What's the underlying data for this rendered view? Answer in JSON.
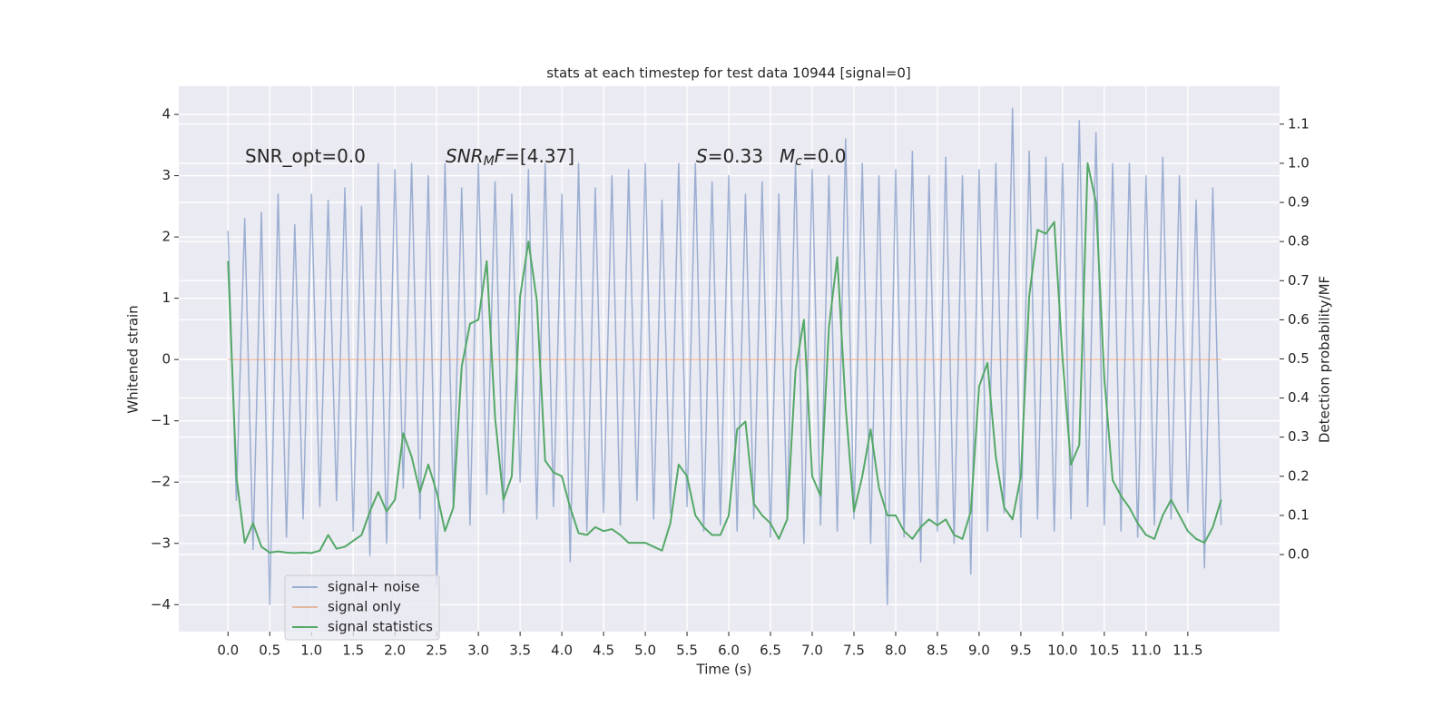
{
  "chart_data": {
    "type": "line",
    "title": "stats at each timestep for test data 10944 [signal=0]",
    "x_label": "Time (s)",
    "y_label": "Whitened strain",
    "y2_label": "Detection probability/MF",
    "xlim": [
      -0.59,
      12.6
    ],
    "ylim": [
      -4.44,
      4.46
    ],
    "y2lim": [
      -0.197,
      1.197
    ],
    "xticks": [
      {
        "value": 0,
        "label": "0.0"
      },
      0.5,
      {
        "value": 1,
        "label": "1.0"
      },
      1.5,
      {
        "value": 2,
        "label": "2.0"
      },
      2.5,
      {
        "value": 3,
        "label": "3.0"
      },
      3.5,
      {
        "value": 4,
        "label": "4.0"
      },
      4.5,
      {
        "value": 5,
        "label": "5.0"
      },
      5.5,
      {
        "value": 6,
        "label": "6.0"
      },
      6.5,
      {
        "value": 7,
        "label": "7.0"
      },
      7.5,
      {
        "value": 8,
        "label": "8.0"
      },
      8.5,
      {
        "value": 9,
        "label": "9.0"
      },
      9.5,
      {
        "value": 10,
        "label": "10.0"
      },
      10.5,
      {
        "value": 11,
        "label": "11.0"
      },
      11.5
    ],
    "yticks": [
      {
        "value": -4,
        "label": "−4"
      },
      {
        "value": -3,
        "label": "−3"
      },
      {
        "value": -2,
        "label": "−2"
      },
      {
        "value": -1,
        "label": "−1"
      },
      0,
      1,
      2,
      3,
      4
    ],
    "y2ticks": [
      {
        "value": 0,
        "label": "0.0"
      },
      0.1,
      0.2,
      0.3,
      0.4,
      0.5,
      0.6,
      0.7,
      0.8,
      0.9,
      {
        "value": 1,
        "label": "1.0"
      },
      1.1
    ],
    "grid": true,
    "legend": "lower left",
    "annotations": [
      {
        "parts": [
          {
            "text": "SNR_opt=0.0"
          }
        ]
      },
      {
        "parts": [
          {
            "text": "SNR",
            "italic": true
          },
          {
            "text": "M",
            "italic": true,
            "sub": true
          },
          {
            "text": "F",
            "italic": true
          },
          {
            "text": "=[4.37]"
          }
        ]
      },
      {
        "parts": [
          {
            "text": "S",
            "italic": true
          },
          {
            "text": "=0.33"
          }
        ]
      },
      {
        "parts": [
          {
            "text": "M",
            "italic": true
          },
          {
            "text": "c",
            "italic": true,
            "sub": true
          },
          {
            "text": "=0.0"
          }
        ]
      }
    ],
    "series": [
      {
        "name": "signal+ noise",
        "color": "#4c72b0",
        "opacity": 0.5,
        "x": [
          0.0,
          0.1,
          0.2,
          0.3,
          0.4,
          0.5,
          0.6,
          0.7,
          0.8,
          0.9,
          1.0,
          1.1,
          1.2,
          1.3,
          1.4,
          1.5,
          1.6,
          1.7,
          1.8,
          1.9,
          2.0,
          2.1,
          2.2,
          2.3,
          2.4,
          2.5,
          2.6,
          2.7,
          2.8,
          2.9,
          3.0,
          3.1,
          3.2,
          3.3,
          3.4,
          3.5,
          3.6,
          3.7,
          3.8,
          3.9,
          4.0,
          4.1,
          4.2,
          4.3,
          4.4,
          4.5,
          4.6,
          4.7,
          4.8,
          4.9,
          5.0,
          5.1,
          5.2,
          5.3,
          5.4,
          5.5,
          5.6,
          5.7,
          5.8,
          5.9,
          6.0,
          6.1,
          6.2,
          6.3,
          6.4,
          6.5,
          6.6,
          6.7,
          6.8,
          6.9,
          7.0,
          7.1,
          7.2,
          7.3,
          7.4,
          7.5,
          7.6,
          7.7,
          7.8,
          7.9,
          8.0,
          8.1,
          8.2,
          8.3,
          8.4,
          8.5,
          8.6,
          8.7,
          8.8,
          8.9,
          9.0,
          9.1,
          9.2,
          9.3,
          9.4,
          9.5,
          9.6,
          9.7,
          9.8,
          9.9,
          10.0,
          10.1,
          10.2,
          10.3,
          10.4,
          10.5,
          10.6,
          10.7,
          10.8,
          10.9,
          11.0,
          11.1,
          11.2,
          11.3,
          11.4,
          11.5,
          11.6,
          11.7,
          11.8,
          11.9
        ],
        "values": [
          2.1,
          -2.3,
          2.3,
          -3.1,
          2.4,
          -4.0,
          2.7,
          -2.9,
          2.2,
          -2.6,
          2.7,
          -2.4,
          2.6,
          -2.3,
          2.8,
          -2.8,
          2.5,
          -3.2,
          3.2,
          -3.0,
          3.1,
          -2.1,
          3.2,
          -2.6,
          3.0,
          -3.7,
          3.2,
          -2.4,
          2.8,
          -2.7,
          3.2,
          -2.2,
          2.9,
          -2.5,
          2.7,
          -2.0,
          3.1,
          -2.6,
          3.2,
          -2.4,
          2.7,
          -3.3,
          3.2,
          -2.8,
          2.8,
          -2.5,
          3.0,
          -2.7,
          3.1,
          -2.3,
          3.2,
          -2.6,
          2.6,
          -2.5,
          3.2,
          -2.4,
          3.2,
          -2.8,
          2.9,
          -2.7,
          3.0,
          -2.8,
          2.7,
          -2.6,
          2.9,
          -2.9,
          2.7,
          -2.6,
          3.2,
          -3.0,
          3.1,
          -2.7,
          3.0,
          -2.8,
          3.6,
          -2.6,
          3.2,
          -3.0,
          3.0,
          -4.0,
          3.1,
          -2.9,
          3.4,
          -3.3,
          3.0,
          -2.8,
          3.3,
          -3.0,
          3.0,
          -3.5,
          3.1,
          -2.8,
          3.2,
          -2.5,
          4.1,
          -2.9,
          3.4,
          -2.6,
          3.3,
          -2.8,
          3.2,
          -2.6,
          3.9,
          -2.4,
          3.7,
          -2.7,
          3.2,
          -2.8,
          3.2,
          -2.9,
          3.0,
          -2.7,
          3.3,
          -2.6,
          3.0,
          -2.5,
          2.6,
          -3.4,
          2.8,
          -2.7
        ]
      },
      {
        "name": "signal only",
        "color": "#dd8452",
        "opacity": 0.5,
        "x": [
          0.0,
          11.9
        ],
        "values": [
          0,
          0
        ]
      },
      {
        "name": "signal statistics",
        "color": "#55a868",
        "opacity": 1,
        "axis": "y2",
        "x": [
          0.0,
          0.1,
          0.2,
          0.3,
          0.4,
          0.5,
          0.6,
          0.7,
          0.8,
          0.9,
          1.0,
          1.1,
          1.2,
          1.3,
          1.4,
          1.5,
          1.6,
          1.7,
          1.8,
          1.9,
          2.0,
          2.1,
          2.2,
          2.3,
          2.4,
          2.5,
          2.6,
          2.7,
          2.8,
          2.9,
          3.0,
          3.1,
          3.2,
          3.3,
          3.4,
          3.5,
          3.6,
          3.7,
          3.8,
          3.9,
          4.0,
          4.1,
          4.2,
          4.3,
          4.4,
          4.5,
          4.6,
          4.7,
          4.8,
          4.9,
          5.0,
          5.1,
          5.2,
          5.3,
          5.4,
          5.5,
          5.6,
          5.7,
          5.8,
          5.9,
          6.0,
          6.1,
          6.2,
          6.3,
          6.4,
          6.5,
          6.6,
          6.7,
          6.8,
          6.9,
          7.0,
          7.1,
          7.2,
          7.3,
          7.4,
          7.5,
          7.6,
          7.7,
          7.8,
          7.9,
          8.0,
          8.1,
          8.2,
          8.3,
          8.4,
          8.5,
          8.6,
          8.7,
          8.8,
          8.9,
          9.0,
          9.1,
          9.2,
          9.3,
          9.4,
          9.5,
          9.6,
          9.7,
          9.8,
          9.9,
          10.0,
          10.1,
          10.2,
          10.3,
          10.4,
          10.5,
          10.6,
          10.7,
          10.8,
          10.9,
          11.0,
          11.1,
          11.2,
          11.3,
          11.4,
          11.5,
          11.6,
          11.7,
          11.8,
          11.9
        ],
        "values": [
          0.75,
          0.2,
          0.03,
          0.08,
          0.02,
          0.005,
          0.008,
          0.005,
          0.004,
          0.005,
          0.004,
          0.01,
          0.05,
          0.015,
          0.02,
          0.035,
          0.05,
          0.11,
          0.16,
          0.11,
          0.14,
          0.31,
          0.25,
          0.16,
          0.23,
          0.16,
          0.06,
          0.12,
          0.48,
          0.59,
          0.6,
          0.75,
          0.35,
          0.14,
          0.2,
          0.66,
          0.8,
          0.65,
          0.24,
          0.21,
          0.2,
          0.12,
          0.055,
          0.05,
          0.07,
          0.06,
          0.065,
          0.05,
          0.03,
          0.03,
          0.03,
          0.02,
          0.01,
          0.08,
          0.23,
          0.2,
          0.1,
          0.07,
          0.05,
          0.05,
          0.1,
          0.32,
          0.34,
          0.13,
          0.1,
          0.08,
          0.04,
          0.09,
          0.47,
          0.6,
          0.2,
          0.15,
          0.58,
          0.76,
          0.38,
          0.11,
          0.2,
          0.32,
          0.17,
          0.1,
          0.1,
          0.06,
          0.04,
          0.07,
          0.09,
          0.075,
          0.09,
          0.05,
          0.04,
          0.11,
          0.43,
          0.49,
          0.25,
          0.12,
          0.09,
          0.2,
          0.66,
          0.83,
          0.82,
          0.85,
          0.5,
          0.23,
          0.28,
          1.0,
          0.9,
          0.45,
          0.19,
          0.15,
          0.12,
          0.08,
          0.05,
          0.04,
          0.1,
          0.14,
          0.1,
          0.06,
          0.04,
          0.03,
          0.07,
          0.14
        ]
      }
    ]
  }
}
